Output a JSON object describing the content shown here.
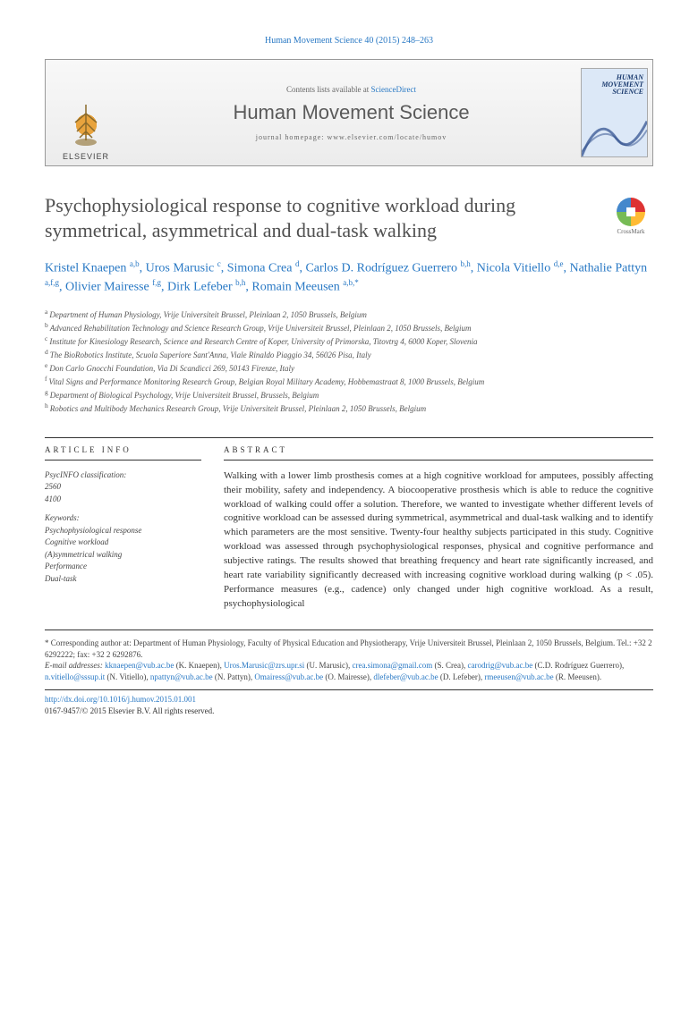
{
  "citation": "Human Movement Science 40 (2015) 248–263",
  "banner": {
    "publisher": "ELSEVIER",
    "contents_prefix": "Contents lists available at ",
    "contents_link": "ScienceDirect",
    "journal": "Human Movement Science",
    "homepage_prefix": "journal homepage: ",
    "homepage_url": "www.elsevier.com/locate/humov",
    "cover_line1": "HUMAN",
    "cover_line2": "MOVEMENT",
    "cover_line3": "SCIENCE"
  },
  "title": "Psychophysiological response to cognitive workload during symmetrical, asymmetrical and dual-task walking",
  "crossmark": "CrossMark",
  "authors_html": "Kristel Knaepen <sup>a,b</sup>, Uros Marusic <sup>c</sup>, Simona Crea <sup>d</sup>, Carlos D. Rodríguez Guerrero <sup>b,h</sup>, Nicola Vitiello <sup>d,e</sup>, Nathalie Pattyn <sup>a,f,g</sup>, Olivier Mairesse <sup>f,g</sup>, Dirk Lefeber <sup>b,h</sup>, Romain Meeusen <sup>a,b,*</sup>",
  "affiliations": [
    {
      "sup": "a",
      "text": "Department of Human Physiology, Vrije Universiteit Brussel, Pleinlaan 2, 1050 Brussels, Belgium"
    },
    {
      "sup": "b",
      "text": "Advanced Rehabilitation Technology and Science Research Group, Vrije Universiteit Brussel, Pleinlaan 2, 1050 Brussels, Belgium"
    },
    {
      "sup": "c",
      "text": "Institute for Kinesiology Research, Science and Research Centre of Koper, University of Primorska, Titovtrg 4, 6000 Koper, Slovenia"
    },
    {
      "sup": "d",
      "text": "The BioRobotics Institute, Scuola Superiore Sant'Anna, Viale Rinaldo Piaggio 34, 56026 Pisa, Italy"
    },
    {
      "sup": "e",
      "text": "Don Carlo Gnocchi Foundation, Via Di Scandicci 269, 50143 Firenze, Italy"
    },
    {
      "sup": "f",
      "text": "Vital Signs and Performance Monitoring Research Group, Belgian Royal Military Academy, Hobbemastraat 8, 1000 Brussels, Belgium"
    },
    {
      "sup": "g",
      "text": "Department of Biological Psychology, Vrije Universiteit Brussel, Brussels, Belgium"
    },
    {
      "sup": "h",
      "text": "Robotics and Multibody Mechanics Research Group, Vrije Universiteit Brussel, Pleinlaan 2, 1050 Brussels, Belgium"
    }
  ],
  "article_info_head": "ARTICLE INFO",
  "abstract_head": "ABSTRACT",
  "psycinfo_label": "PsycINFO classification:",
  "psycinfo_codes": [
    "2560",
    "4100"
  ],
  "keywords_label": "Keywords:",
  "keywords": [
    "Psychophysiological response",
    "Cognitive workload",
    "(A)symmetrical walking",
    "Performance",
    "Dual-task"
  ],
  "abstract": "Walking with a lower limb prosthesis comes at a high cognitive workload for amputees, possibly affecting their mobility, safety and independency. A biocooperative prosthesis which is able to reduce the cognitive workload of walking could offer a solution. Therefore, we wanted to investigate whether different levels of cognitive workload can be assessed during symmetrical, asymmetrical and dual-task walking and to identify which parameters are the most sensitive. Twenty-four healthy subjects participated in this study. Cognitive workload was assessed through psychophysiological responses, physical and cognitive performance and subjective ratings. The results showed that breathing frequency and heart rate significantly increased, and heart rate variability significantly decreased with increasing cognitive workload during walking (p < .05). Performance measures (e.g., cadence) only changed under high cognitive workload. As a result, psychophysiological",
  "corresponding": {
    "label": "* Corresponding author at: ",
    "text": "Department of Human Physiology, Faculty of Physical Education and Physiotherapy, Vrije Universiteit Brussel, Pleinlaan 2, 1050 Brussels, Belgium. Tel.: +32 2 6292222; fax: +32 2 6292876."
  },
  "emails_label": "E-mail addresses: ",
  "emails": [
    {
      "email": "kknaepen@vub.ac.be",
      "who": "(K. Knaepen)"
    },
    {
      "email": "Uros.Marusic@zrs.upr.si",
      "who": "(U. Marusic)"
    },
    {
      "email": "crea.simona@gmail.com",
      "who": "(S. Crea)"
    },
    {
      "email": "carodrig@vub.ac.be",
      "who": "(C.D. Rodríguez Guerrero)"
    },
    {
      "email": "n.vitiello@sssup.it",
      "who": "(N. Vitiello)"
    },
    {
      "email": "npattyn@vub.ac.be",
      "who": "(N. Pattyn)"
    },
    {
      "email": "Omairess@vub.ac.be",
      "who": "(O. Mairesse)"
    },
    {
      "email": "dlefeber@vub.ac.be",
      "who": "(D. Lefeber)"
    },
    {
      "email": "rmeeusen@vub.ac.be",
      "who": "(R. Meeusen)"
    }
  ],
  "doi": "http://dx.doi.org/10.1016/j.humov.2015.01.001",
  "issn_copyright": "0167-9457/© 2015 Elsevier B.V. All rights reserved.",
  "colors": {
    "link": "#2878c4",
    "title": "#505050",
    "text": "#333333",
    "muted": "#666666"
  }
}
